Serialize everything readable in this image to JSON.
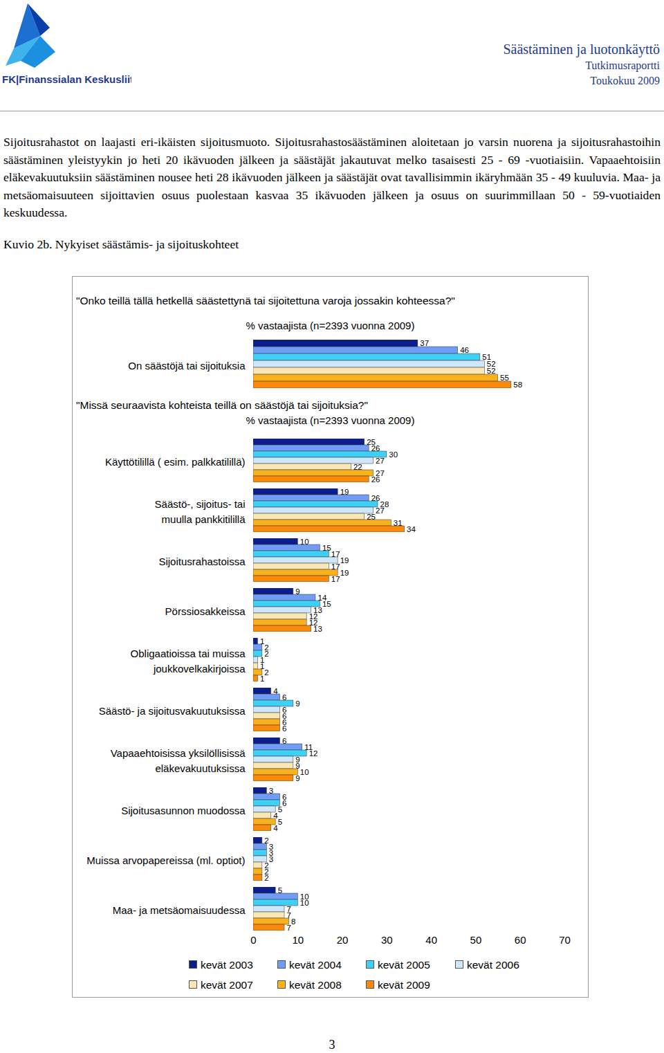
{
  "page": {
    "logo": "FK|Finanssialan Keskusliitto",
    "header": [
      "Säästäminen ja luotonkäyttö",
      "Tutkimusraportti",
      "Toukokuu 2009"
    ],
    "paragraph": "Sijoitusrahastot on laajasti eri-ikäisten sijoitusmuoto. Sijoitusrahastosäästäminen aloitetaan jo varsin nuorena ja sijoitusrahastoihin säästäminen yleistyykin jo heti 20 ikävuoden jälkeen ja säästäjät jakautuvat melko tasaisesti 25 - 69 -vuotiaisiin. Vapaaehtoisiin eläkevakuutuksiin säästäminen nousee heti 28 ikävuoden jälkeen ja säästäjät ovat tavallisimmin ikäryhmään 35 - 49 kuuluvia. Maa- ja metsäomaisuuteen sijoittavien osuus puolestaan kasvaa 35 ikävuoden jälkeen ja osuus on suurimmillaan 50 - 59-vuotiaiden keskuudessa.",
    "caption": "Kuvio 2b. Nykyiset säästämis- ja sijoituskohteet",
    "page_number": "3"
  },
  "chart_data": [
    {
      "type": "bar",
      "orientation": "horizontal",
      "title": "\"Onko teillä tällä hetkellä säästettynä tai sijoitettuna varoja jossakin kohteessa?\"",
      "subtitle": "% vastaajista (n=2393 vuonna 2009)",
      "categories": [
        "On säästöjä tai sijoituksia"
      ],
      "series": [
        {
          "name": "kevät 2003",
          "color": "#0b1e8c",
          "values": [
            37
          ]
        },
        {
          "name": "kevät 2004",
          "color": "#6f9df5",
          "values": [
            46
          ]
        },
        {
          "name": "kevät 2005",
          "color": "#3fd0f5",
          "values": [
            51
          ]
        },
        {
          "name": "kevät 2006",
          "color": "#cfe6fb",
          "values": [
            52
          ]
        },
        {
          "name": "kevät 2007",
          "color": "#fbe7b5",
          "values": [
            52
          ]
        },
        {
          "name": "kevät 2008",
          "color": "#fbb21a",
          "values": [
            55
          ]
        },
        {
          "name": "kevät 2009",
          "color": "#f98a0c",
          "values": [
            58
          ]
        }
      ],
      "xlim": [
        0,
        70
      ],
      "data_labels": true,
      "tick_labels": "y"
    },
    {
      "type": "bar",
      "orientation": "horizontal",
      "title": "\"Missä seuraavista kohteista teillä on säästöjä tai sijoituksia?\"",
      "subtitle": "% vastaajista (n=2393 vuonna 2009)",
      "categories": [
        "Käyttötilillä ( esim. palkkatilillä)",
        "Säästö-, sijoitus- tai\nmuulla pankkitilillä",
        "Sijoitusrahastoissa",
        "Pörssiosakkeissa",
        "Obligaatioissa tai muissa\njoukkovelkakirjoissa",
        "Säästö- ja sijoitusvakuutuksissa",
        "Vapaaehtoisissa yksilöllisissä\neläkevakuutuksissa",
        "Sijoitusasunnon muodossa",
        "Muissa arvopapereissa (ml. optiot)",
        "Maa- ja metsäomaisuudessa"
      ],
      "series": [
        {
          "name": "kevät 2003",
          "color": "#0b1e8c",
          "values": [
            25,
            19,
            10,
            9,
            1,
            4,
            6,
            3,
            2,
            5
          ]
        },
        {
          "name": "kevät 2004",
          "color": "#6f9df5",
          "values": [
            26,
            26,
            15,
            14,
            2,
            6,
            11,
            6,
            3,
            10
          ]
        },
        {
          "name": "kevät 2005",
          "color": "#3fd0f5",
          "values": [
            30,
            28,
            17,
            15,
            2,
            9,
            12,
            6,
            3,
            10
          ]
        },
        {
          "name": "kevät 2006",
          "color": "#cfe6fb",
          "values": [
            27,
            27,
            19,
            13,
            1,
            6,
            9,
            5,
            3,
            7
          ]
        },
        {
          "name": "kevät 2007",
          "color": "#fbe7b5",
          "values": [
            22,
            25,
            17,
            12,
            1,
            6,
            9,
            4,
            2,
            7
          ]
        },
        {
          "name": "kevät 2008",
          "color": "#fbb21a",
          "values": [
            27,
            31,
            19,
            12,
            2,
            6,
            10,
            5,
            2,
            8
          ]
        },
        {
          "name": "kevät 2009",
          "color": "#f98a0c",
          "values": [
            26,
            34,
            17,
            13,
            1,
            6,
            9,
            4,
            2,
            7
          ]
        }
      ],
      "xlim": [
        0,
        70
      ],
      "xticks": [
        0,
        10,
        20,
        30,
        40,
        50,
        60,
        70
      ],
      "data_labels": true,
      "legend": "bottom"
    }
  ]
}
